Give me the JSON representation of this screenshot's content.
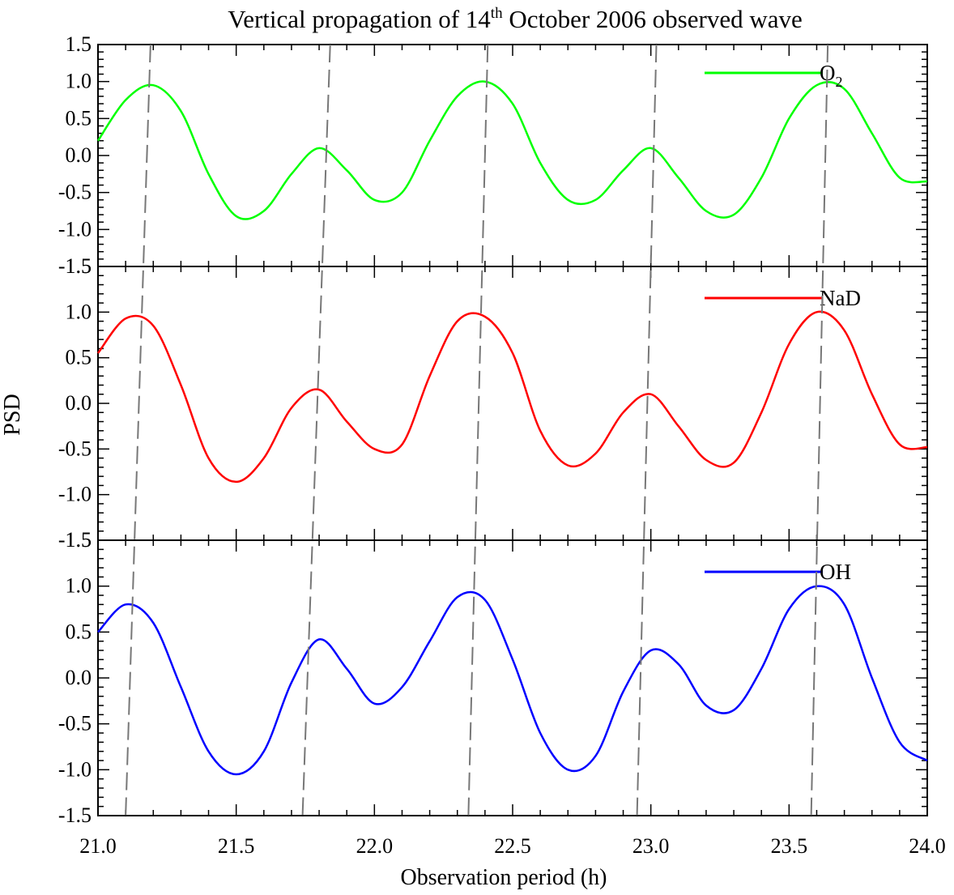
{
  "chart_data": {
    "type": "line",
    "title": {
      "prefix": "Vertical propagation of 14",
      "superscript": "th",
      "suffix": " October 2006  observed wave"
    },
    "xlabel": "Observation period (h)",
    "ylabel": "PSD",
    "xlim": [
      21.0,
      24.0
    ],
    "ylim": [
      -1.5,
      1.5
    ],
    "x_ticks": [
      "21.0",
      "21.5",
      "22.0",
      "22.5",
      "23.0",
      "23.5",
      "24.0"
    ],
    "y_ticks": [
      "1.5",
      "1.0",
      "0.5",
      "0.0",
      "-0.5",
      "-1.0",
      "-1.5"
    ],
    "x": [
      21.0,
      21.1,
      21.2,
      21.3,
      21.4,
      21.5,
      21.6,
      21.7,
      21.8,
      21.9,
      22.0,
      22.1,
      22.2,
      22.3,
      22.4,
      22.5,
      22.6,
      22.7,
      22.8,
      22.9,
      23.0,
      23.1,
      23.2,
      23.3,
      23.4,
      23.5,
      23.6,
      23.7,
      23.8,
      23.9,
      24.0
    ],
    "series": [
      {
        "name": "O",
        "name_subscript": "2",
        "color": "#00ff00",
        "values": [
          0.2,
          0.75,
          0.95,
          0.6,
          -0.25,
          -0.82,
          -0.75,
          -0.25,
          0.1,
          -0.2,
          -0.6,
          -0.5,
          0.2,
          0.8,
          1.0,
          0.7,
          -0.1,
          -0.6,
          -0.6,
          -0.2,
          0.1,
          -0.3,
          -0.75,
          -0.8,
          -0.3,
          0.5,
          0.95,
          0.9,
          0.3,
          -0.3,
          -0.35
        ]
      },
      {
        "name": "NaD",
        "color": "#ff0000",
        "values": [
          0.55,
          0.93,
          0.85,
          0.2,
          -0.6,
          -0.86,
          -0.6,
          -0.05,
          0.15,
          -0.2,
          -0.5,
          -0.45,
          0.3,
          0.9,
          0.95,
          0.55,
          -0.3,
          -0.68,
          -0.55,
          -0.1,
          0.1,
          -0.25,
          -0.62,
          -0.65,
          -0.1,
          0.65,
          1.0,
          0.8,
          0.1,
          -0.45,
          -0.48
        ]
      },
      {
        "name": "OH",
        "color": "#0000ff",
        "values": [
          0.5,
          0.8,
          0.6,
          -0.1,
          -0.8,
          -1.05,
          -0.8,
          -0.05,
          0.42,
          0.1,
          -0.28,
          -0.1,
          0.4,
          0.88,
          0.85,
          0.2,
          -0.6,
          -1.0,
          -0.85,
          -0.15,
          0.3,
          0.15,
          -0.3,
          -0.35,
          0.1,
          0.75,
          1.0,
          0.8,
          0.0,
          -0.7,
          -0.9
        ]
      }
    ],
    "phase_lines": [
      {
        "top": 21.19,
        "bottom": 21.1
      },
      {
        "top": 21.84,
        "bottom": 21.74
      },
      {
        "top": 22.41,
        "bottom": 22.34
      },
      {
        "top": 23.02,
        "bottom": 22.95
      },
      {
        "top": 23.64,
        "bottom": 23.58
      }
    ]
  }
}
